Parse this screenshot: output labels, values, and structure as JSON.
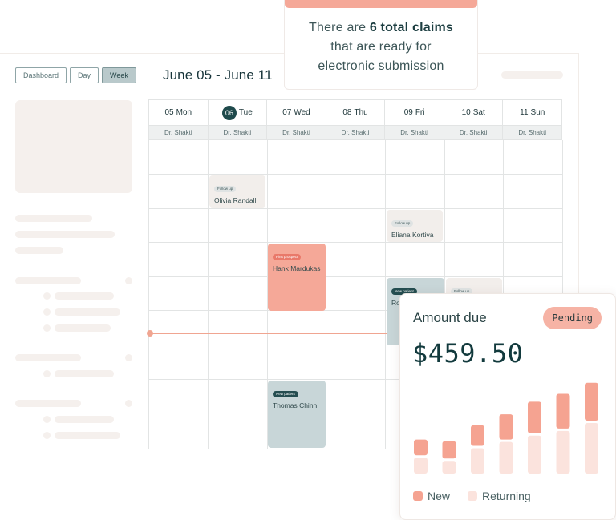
{
  "view_toggle": {
    "dashboard_label": "Dashboard",
    "day_label": "Day",
    "week_label": "Week",
    "active": "Week"
  },
  "calendar": {
    "range_title": "June 05 - June 11",
    "days": [
      {
        "num": "05",
        "name": "Mon",
        "today": false
      },
      {
        "num": "06",
        "name": "Tue",
        "today": true
      },
      {
        "num": "07",
        "name": "Wed",
        "today": false
      },
      {
        "num": "08",
        "name": "Thu",
        "today": false
      },
      {
        "num": "09",
        "name": "Fri",
        "today": false
      },
      {
        "num": "10",
        "name": "Sat",
        "today": false
      },
      {
        "num": "11",
        "name": "Sun",
        "today": false
      }
    ],
    "doctor": "Dr. Shakti",
    "events": [
      {
        "day": 1,
        "tag": "Follow up",
        "name": "Olivia Randall",
        "kind": "followup"
      },
      {
        "day": 4,
        "tag": "Follow up",
        "name": "Eliana Kortiva",
        "kind": "followup"
      },
      {
        "day": 2,
        "tag": "First prospect",
        "name": "Hank Mardukas",
        "kind": "first"
      },
      {
        "day": 4,
        "tag": "New patient",
        "name": "Rob",
        "kind": "new"
      },
      {
        "day": 5,
        "tag": "Follow up",
        "name": "",
        "kind": "followup"
      },
      {
        "day": 2,
        "tag": "New patient",
        "name": "Thomas Chinn",
        "kind": "new"
      }
    ]
  },
  "claims": {
    "prefix": "There are ",
    "count_text": "6 total claims",
    "line2": "that are ready for",
    "line3": "electronic submission",
    "accent_color": "#f5a898"
  },
  "amount_due": {
    "label": "Amount due",
    "status": "Pending",
    "value": "$459.50"
  },
  "chart_data": {
    "type": "bar",
    "stacked": true,
    "categories": [
      "",
      "",
      "",
      "",
      "",
      "",
      ""
    ],
    "series": [
      {
        "name": "New",
        "color": "#f5a391",
        "values": [
          20,
          22,
          26,
          32,
          40,
          44,
          48
        ]
      },
      {
        "name": "Returning",
        "color": "#fbe3dd",
        "values": [
          20,
          16,
          32,
          40,
          48,
          54,
          64
        ]
      }
    ],
    "ylim": [
      0,
      130
    ],
    "legend": "bottom-left"
  },
  "colors": {
    "primary": "#1f4a4c",
    "accent": "#f5a898",
    "skeleton": "#f5f0ed"
  }
}
